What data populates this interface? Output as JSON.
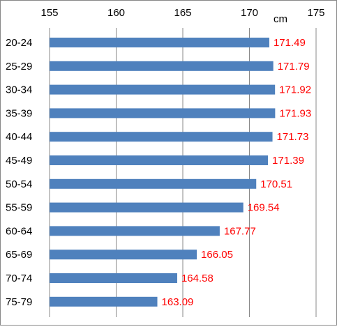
{
  "chart_data": {
    "type": "bar",
    "orientation": "horizontal",
    "categories": [
      "20-24",
      "25-29",
      "30-34",
      "35-39",
      "40-44",
      "45-49",
      "50-54",
      "55-59",
      "60-64",
      "65-69",
      "70-74",
      "75-79"
    ],
    "values": [
      171.49,
      171.79,
      171.92,
      171.93,
      171.73,
      171.39,
      170.51,
      169.54,
      167.77,
      166.05,
      164.58,
      163.09
    ],
    "value_labels": [
      "171.49",
      "171.79",
      "171.92",
      "171.93",
      "171.73",
      "171.39",
      "170.51",
      "169.54",
      "167.77",
      "166.05",
      "164.58",
      "163.09"
    ],
    "x_ticks": [
      155,
      160,
      165,
      170,
      175
    ],
    "x_tick_labels": [
      "155",
      "160",
      "165",
      "170",
      "175"
    ],
    "xlim": [
      155,
      175
    ],
    "x_axis_position": "top",
    "unit_label": "cm",
    "grid": "vertical",
    "legend": "none",
    "colors": {
      "bar": "#4f81bd",
      "value_label": "#ff0000",
      "grid": "#8a8a8a",
      "text": "#000000",
      "border": "#878787"
    }
  }
}
